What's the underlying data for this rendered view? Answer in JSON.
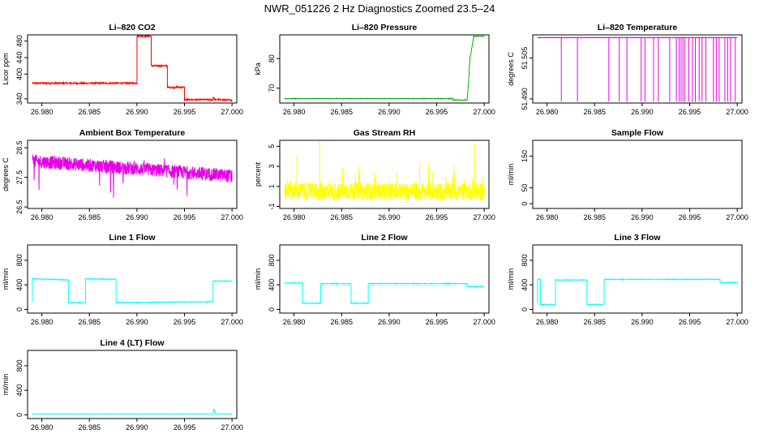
{
  "title": "NWR_051226  2 Hz Diagnostics Zoomed 23.5–24",
  "chart_data": [
    {
      "type": "line",
      "title": "Li–820 CO2",
      "ylabel": "Licor ppm",
      "color": "#ff0000",
      "xlim": [
        26.9785,
        27.0005
      ],
      "ylim": [
        330,
        495
      ],
      "xticks": [
        26.98,
        26.985,
        26.99,
        26.995,
        27.0
      ],
      "xtick_labels": [
        "26.980",
        "26.985",
        "26.990",
        "26.995",
        "27.000"
      ],
      "yticks": [
        340,
        400,
        440,
        480
      ],
      "ytick_labels": [
        "340",
        "400",
        "440",
        "480"
      ],
      "noise": 2,
      "series": [
        {
          "x": [
            26.979,
            26.99,
            26.99,
            26.9915,
            26.9915,
            26.9932,
            26.9932,
            26.995,
            26.995,
            26.998,
            26.998,
            26.9982,
            26.9982,
            27.0
          ],
          "y": [
            378,
            378,
            492,
            492,
            420,
            420,
            368,
            368,
            338,
            338,
            345,
            338,
            338,
            337
          ]
        }
      ]
    },
    {
      "type": "line",
      "title": "Li–820 Pressure",
      "ylabel": "kPa",
      "color": "#00b000",
      "xlim": [
        26.9785,
        27.0005
      ],
      "ylim": [
        65,
        88
      ],
      "xticks": [
        26.98,
        26.985,
        26.99,
        26.995,
        27.0
      ],
      "xtick_labels": [
        "26.980",
        "26.985",
        "26.990",
        "26.995",
        "27.000"
      ],
      "yticks": [
        70,
        80
      ],
      "ytick_labels": [
        "70",
        "80"
      ],
      "noise": 0.1,
      "series": [
        {
          "x": [
            26.979,
            26.9967,
            26.9967,
            26.9982,
            26.99835,
            26.9985,
            26.9988,
            26.9989,
            27.0
          ],
          "y": [
            66.5,
            66.5,
            66.0,
            66.0,
            72,
            80,
            85.5,
            87.5,
            87.5
          ]
        }
      ]
    },
    {
      "type": "line",
      "title": "Li–820 Temperature",
      "ylabel": "degrees C",
      "color": "#e600e6",
      "xlim": [
        26.9785,
        27.0005
      ],
      "ylim": [
        51.4885,
        51.5135
      ],
      "xticks": [
        26.98,
        26.985,
        26.99,
        26.995,
        27.0
      ],
      "xtick_labels": [
        "26.980",
        "26.985",
        "26.990",
        "26.995",
        "27.000"
      ],
      "yticks": [
        51.49,
        51.505
      ],
      "ytick_labels": [
        "51.490",
        "51.505"
      ],
      "baseline": 51.5125,
      "spike_low": 51.489,
      "spikes_x": [
        26.9815,
        26.9832,
        26.9865,
        26.9876,
        26.9884,
        26.9899,
        26.9903,
        26.9912,
        26.9917,
        26.9929,
        26.9936,
        26.9939,
        26.9941,
        26.9943,
        26.9945,
        26.9949,
        26.9953,
        26.9956,
        26.996,
        26.9963,
        26.9967,
        26.9975,
        26.9978,
        26.9981,
        26.9987,
        26.999,
        26.9993,
        26.9998
      ]
    },
    {
      "type": "line",
      "title": "Ambient Box Temperature",
      "ylabel": "degrees C",
      "color": "#e600e6",
      "xlim": [
        26.9785,
        27.0005
      ],
      "ylim": [
        26.45,
        28.75
      ],
      "xticks": [
        26.98,
        26.985,
        26.99,
        26.995,
        27.0
      ],
      "xtick_labels": [
        "26.980",
        "26.985",
        "26.990",
        "26.995",
        "27.000"
      ],
      "yticks": [
        26.5,
        27.5,
        28.5
      ],
      "ytick_labels": [
        "26.5",
        "27.5",
        "28.5"
      ],
      "trend_start": 28.05,
      "trend_end": 27.55,
      "noise": 0.45
    },
    {
      "type": "line",
      "title": "Gas Stream RH",
      "ylabel": "percent",
      "color": "#ffff00",
      "xlim": [
        26.9785,
        27.0005
      ],
      "ylim": [
        -1.2,
        5.6
      ],
      "xticks": [
        26.98,
        26.985,
        26.99,
        26.995,
        27.0
      ],
      "xtick_labels": [
        "26.980",
        "26.985",
        "26.990",
        "26.995",
        "27.000"
      ],
      "yticks": [
        -1,
        1,
        3,
        5
      ],
      "ytick_labels": [
        "-1",
        "1",
        "3",
        "5"
      ],
      "level": 0.5,
      "noise": 0.9,
      "spikes": [
        {
          "x": 26.9803,
          "y": 4.0
        },
        {
          "x": 26.9827,
          "y": 5.5
        },
        {
          "x": 26.9868,
          "y": 3.0
        },
        {
          "x": 26.9932,
          "y": 3.4
        },
        {
          "x": 26.9946,
          "y": 2.6
        },
        {
          "x": 26.9968,
          "y": 3.2
        },
        {
          "x": 26.999,
          "y": 5.2
        }
      ]
    },
    {
      "type": "line",
      "title": "Sample Flow",
      "ylabel": "ml/min",
      "color": "#00ffff",
      "xlim": [
        26.9785,
        27.0005
      ],
      "ylim": [
        -15,
        200
      ],
      "xticks": [
        26.98,
        26.985,
        26.99,
        26.995,
        27.0
      ],
      "xtick_labels": [
        "26.980",
        "26.985",
        "26.990",
        "26.995",
        "27.000"
      ],
      "yticks": [
        0,
        50,
        150
      ],
      "ytick_labels": [
        "0",
        "50",
        "150"
      ],
      "series": []
    },
    {
      "type": "line",
      "title": "Line 1 Flow",
      "ylabel": "ml/min",
      "color": "#00ffff",
      "xlim": [
        26.9785,
        27.0005
      ],
      "ylim": [
        -60,
        1050
      ],
      "xticks": [
        26.98,
        26.985,
        26.99,
        26.995,
        27.0
      ],
      "xtick_labels": [
        "26.980",
        "26.985",
        "26.990",
        "26.995",
        "27.000"
      ],
      "yticks": [
        0,
        400,
        800
      ],
      "ytick_labels": [
        "0",
        "400",
        "800"
      ],
      "noise": 6,
      "series": [
        {
          "x": [
            26.979,
            26.979,
            26.9828,
            26.9828,
            26.9846,
            26.9846,
            26.9878,
            26.9878,
            26.998,
            26.998,
            27.0
          ],
          "y": [
            120,
            500,
            480,
            110,
            110,
            500,
            490,
            110,
            125,
            460,
            460
          ]
        }
      ]
    },
    {
      "type": "line",
      "title": "Line 2 Flow",
      "ylabel": "ml/min",
      "color": "#00ffff",
      "xlim": [
        26.9785,
        27.0005
      ],
      "ylim": [
        -60,
        1050
      ],
      "xticks": [
        26.98,
        26.985,
        26.99,
        26.995,
        27.0
      ],
      "xtick_labels": [
        "26.980",
        "26.985",
        "26.990",
        "26.995",
        "27.000"
      ],
      "yticks": [
        0,
        400,
        800
      ],
      "ytick_labels": [
        "0",
        "400",
        "800"
      ],
      "noise": 6,
      "series": [
        {
          "x": [
            26.979,
            26.9809,
            26.9809,
            26.9828,
            26.9828,
            26.986,
            26.986,
            26.9878,
            26.9878,
            26.9982,
            26.9982,
            27.0
          ],
          "y": [
            430,
            430,
            100,
            100,
            420,
            420,
            100,
            100,
            420,
            420,
            370,
            370
          ]
        }
      ]
    },
    {
      "type": "line",
      "title": "Line 3 Flow",
      "ylabel": "ml/min",
      "color": "#00ffff",
      "xlim": [
        26.9785,
        27.0005
      ],
      "ylim": [
        -60,
        1050
      ],
      "xticks": [
        26.98,
        26.985,
        26.99,
        26.995,
        27.0
      ],
      "xtick_labels": [
        "26.980",
        "26.985",
        "26.990",
        "26.995",
        "27.000"
      ],
      "yticks": [
        0,
        400,
        800
      ],
      "ytick_labels": [
        "0",
        "400",
        "800"
      ],
      "noise": 6,
      "series": [
        {
          "x": [
            26.979,
            26.979,
            26.9793,
            26.9793,
            26.9809,
            26.9809,
            26.9842,
            26.9842,
            26.986,
            26.986,
            26.9982,
            26.9982,
            27.0
          ],
          "y": [
            90,
            490,
            490,
            80,
            80,
            480,
            480,
            80,
            80,
            490,
            490,
            440,
            440
          ]
        }
      ]
    },
    {
      "type": "line",
      "title": "Line 4 (LT) Flow",
      "ylabel": "ml/min",
      "color": "#00ffff",
      "xlim": [
        26.9785,
        27.0005
      ],
      "ylim": [
        -60,
        1050
      ],
      "xticks": [
        26.98,
        26.985,
        26.99,
        26.995,
        27.0
      ],
      "xtick_labels": [
        "26.980",
        "26.985",
        "26.990",
        "26.995",
        "27.000"
      ],
      "yticks": [
        0,
        400,
        800
      ],
      "ytick_labels": [
        "0",
        "400",
        "800"
      ],
      "noise": 3,
      "series": [
        {
          "x": [
            26.979,
            26.998,
            26.9981,
            26.9982,
            26.9983,
            27.0
          ],
          "y": [
            15,
            15,
            100,
            30,
            15,
            15
          ]
        }
      ]
    }
  ]
}
